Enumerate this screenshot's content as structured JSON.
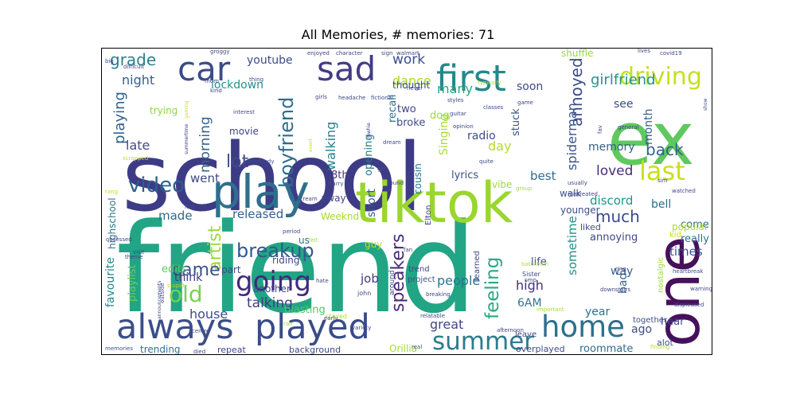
{
  "chart_data": {
    "type": "wordcloud",
    "title": "All Memories, # memories: 71",
    "words": [
      {
        "text": "friend",
        "color": "#21a585"
      },
      {
        "text": "school",
        "color": "#3e3b86"
      },
      {
        "text": "ex",
        "color": "#5fc85e"
      },
      {
        "text": "one",
        "color": "#46105b"
      },
      {
        "text": "tiktok",
        "color": "#9ad62e"
      },
      {
        "text": "play",
        "color": "#2f6f8e"
      },
      {
        "text": "always",
        "color": "#3b4e8a"
      },
      {
        "text": "played",
        "color": "#3a4b89"
      },
      {
        "text": "first",
        "color": "#24888b"
      },
      {
        "text": "car",
        "color": "#3b4b88"
      },
      {
        "text": "sad",
        "color": "#433c84"
      },
      {
        "text": "home",
        "color": "#2e6f8e"
      },
      {
        "text": "driving",
        "color": "#c6e022"
      },
      {
        "text": "summer",
        "color": "#2c7c8e"
      },
      {
        "text": "going",
        "color": "#3f2a7b"
      },
      {
        "text": "last",
        "color": "#c8df1f"
      },
      {
        "text": "old",
        "color": "#79d151"
      },
      {
        "text": "video",
        "color": "#2a5f8d"
      },
      {
        "text": "boyfriend",
        "color": "#2c6d8e"
      },
      {
        "text": "artist",
        "color": "#9fd838"
      },
      {
        "text": "breakup",
        "color": "#2f5a8c"
      },
      {
        "text": "came",
        "color": "#3b528b"
      },
      {
        "text": "feeling",
        "color": "#28a883"
      },
      {
        "text": "speakers",
        "color": "#482a7a"
      },
      {
        "text": "annoyed",
        "color": "#3d4d8a"
      },
      {
        "text": "grade",
        "color": "#2c7f8e"
      },
      {
        "text": "girlfriend",
        "color": "#22938c"
      },
      {
        "text": "lot",
        "color": "#3e4c8a"
      },
      {
        "text": "morning",
        "color": "#37658d"
      },
      {
        "text": "back",
        "color": "#2f638e"
      },
      {
        "text": "playing",
        "color": "#31628c"
      },
      {
        "text": "work",
        "color": "#3b4e8a"
      },
      {
        "text": "night",
        "color": "#355f8d"
      },
      {
        "text": "talking",
        "color": "#403a82"
      },
      {
        "text": "much",
        "color": "#3a4989"
      },
      {
        "text": "spiderman",
        "color": "#3b528b"
      },
      {
        "text": "late",
        "color": "#414a88"
      },
      {
        "text": "loved",
        "color": "#472d7b"
      },
      {
        "text": "walking",
        "color": "#25838e"
      },
      {
        "text": "dance",
        "color": "#a7d834"
      },
      {
        "text": "many",
        "color": "#22a884"
      },
      {
        "text": "youtube",
        "color": "#3b4b8a"
      },
      {
        "text": "lockdown",
        "color": "#21918c"
      },
      {
        "text": "memory",
        "color": "#355f8d"
      },
      {
        "text": "day",
        "color": "#b4dc2b"
      },
      {
        "text": "people",
        "color": "#2a768e"
      },
      {
        "text": "high",
        "color": "#3f2f7c"
      },
      {
        "text": "sometime",
        "color": "#21918c"
      },
      {
        "text": "house",
        "color": "#3d4d8a"
      },
      {
        "text": "great",
        "color": "#414487"
      },
      {
        "text": "job",
        "color": "#433882"
      },
      {
        "text": "released",
        "color": "#355f8d"
      },
      {
        "text": "went",
        "color": "#3f4788"
      },
      {
        "text": "made",
        "color": "#31688e"
      },
      {
        "text": "times",
        "color": "#3b528b"
      },
      {
        "text": "best",
        "color": "#2f6c8e"
      },
      {
        "text": "discord",
        "color": "#21918c"
      },
      {
        "text": "see",
        "color": "#3e4a89"
      },
      {
        "text": "soon",
        "color": "#3f4788"
      },
      {
        "text": "month",
        "color": "#35608d"
      },
      {
        "text": "bell",
        "color": "#2e6e8e"
      },
      {
        "text": "think",
        "color": "#443a83"
      },
      {
        "text": "favourite",
        "color": "#25848e"
      },
      {
        "text": "playlist",
        "color": "#6ccd5a"
      },
      {
        "text": "blasting",
        "color": "#52c569"
      },
      {
        "text": "short",
        "color": "#3a548c"
      },
      {
        "text": "6AM",
        "color": "#2a788e"
      },
      {
        "text": "year",
        "color": "#2d708e"
      },
      {
        "text": "way",
        "color": "#355e8d"
      },
      {
        "text": "bad",
        "color": "#32648e"
      },
      {
        "text": "ago",
        "color": "#3e4c8a"
      },
      {
        "text": "hear",
        "color": "#3f4889"
      },
      {
        "text": "roommate",
        "color": "#2f6c8e"
      },
      {
        "text": "trending",
        "color": "#2c738e"
      },
      {
        "text": "edits",
        "color": "#5ec962"
      },
      {
        "text": "riding",
        "color": "#414487"
      },
      {
        "text": "life",
        "color": "#3b528b"
      },
      {
        "text": "annoying",
        "color": "#3f4889"
      },
      {
        "text": "really",
        "color": "#2e6f8e"
      },
      {
        "text": "come",
        "color": "#2c718e"
      },
      {
        "text": "popular",
        "color": "#addc30"
      },
      {
        "text": "Singing",
        "color": "#a9dc33"
      },
      {
        "text": "radio",
        "color": "#3c4f8a"
      },
      {
        "text": "stuck",
        "color": "#3b528b"
      },
      {
        "text": "broke",
        "color": "#3d4e8a"
      },
      {
        "text": "two",
        "color": "#3f4788"
      },
      {
        "text": "dog",
        "color": "#9bd93c"
      },
      {
        "text": "opening",
        "color": "#2a778e"
      },
      {
        "text": "recall",
        "color": "#2c738e"
      },
      {
        "text": "8th",
        "color": "#463480"
      },
      {
        "text": "highschool",
        "color": "#2b758e"
      },
      {
        "text": "lyrics",
        "color": "#3d4e8a"
      },
      {
        "text": "Weeknd",
        "color": "#a5db36"
      },
      {
        "text": "guy",
        "color": "#c2df23"
      },
      {
        "text": "part",
        "color": "#3f4788"
      },
      {
        "text": "another",
        "color": "#3e4989"
      },
      {
        "text": "us",
        "color": "#2d708e"
      },
      {
        "text": "away",
        "color": "#414487"
      },
      {
        "text": "thought",
        "color": "#3f4889"
      },
      {
        "text": "cousin",
        "color": "#2b758e"
      },
      {
        "text": "vibe",
        "color": "#a0da39"
      },
      {
        "text": "walk",
        "color": "#3b528b"
      },
      {
        "text": "younger",
        "color": "#3d4d8a"
      },
      {
        "text": "liked",
        "color": "#3f4889"
      },
      {
        "text": "nostalgic",
        "color": "#9fda3a"
      },
      {
        "text": "kid",
        "color": "#c9e020"
      },
      {
        "text": "shuffle",
        "color": "#9bd93c"
      },
      {
        "text": "trying",
        "color": "#8bd646"
      },
      {
        "text": "movie",
        "color": "#414487"
      },
      {
        "text": "repeat",
        "color": "#3f4889"
      },
      {
        "text": "background",
        "color": "#3e4a89"
      },
      {
        "text": "Orillia",
        "color": "#a8db34"
      },
      {
        "text": "overplayed",
        "color": "#3f4889"
      },
      {
        "text": "leave",
        "color": "#3f4889"
      },
      {
        "text": "together",
        "color": "#3b528b"
      },
      {
        "text": "trend",
        "color": "#414487"
      },
      {
        "text": "project",
        "color": "#3b528b"
      },
      {
        "text": "learned",
        "color": "#3e4a89"
      },
      {
        "text": "Elton",
        "color": "#414487"
      },
      {
        "text": "around",
        "color": "#3f4788"
      },
      {
        "text": "stayed",
        "color": "#b5de2b"
      },
      {
        "text": "john",
        "color": "#414487"
      },
      {
        "text": "Sister",
        "color": "#3e4a89"
      },
      {
        "text": "bathroom",
        "color": "#b8de29"
      },
      {
        "text": "ring",
        "color": "#414487"
      },
      {
        "text": "alot",
        "color": "#3b528b"
      },
      {
        "text": "warning",
        "color": "#414487"
      },
      {
        "text": "heartbreak",
        "color": "#3e4a89"
      },
      {
        "text": "displeased",
        "color": "#3f4889"
      },
      {
        "text": "finding",
        "color": "#bade28"
      },
      {
        "text": "important",
        "color": "#a5db36"
      },
      {
        "text": "afternoon",
        "color": "#414487"
      },
      {
        "text": "relatable",
        "color": "#3e4a89"
      },
      {
        "text": "real",
        "color": "#3b528b"
      },
      {
        "text": "variety",
        "color": "#414487"
      },
      {
        "text": "early",
        "color": "#3e4a89"
      },
      {
        "text": "died",
        "color": "#414487"
      },
      {
        "text": "memories",
        "color": "#3b528b"
      },
      {
        "text": "centre",
        "color": "#3e4a89"
      },
      {
        "text": "ran",
        "color": "#a5db36"
      },
      {
        "text": "hate",
        "color": "#3f4889"
      },
      {
        "text": "felt",
        "color": "#a8db34"
      },
      {
        "text": "outside",
        "color": "#414487"
      },
      {
        "text": "announcements",
        "color": "#3e4a89"
      },
      {
        "text": "stupid",
        "color": "#b5de2b"
      },
      {
        "text": "theme",
        "color": "#414487"
      },
      {
        "text": "visit",
        "color": "#3f4889"
      },
      {
        "text": "obsessed",
        "color": "#414487"
      },
      {
        "text": "period",
        "color": "#3e4a89"
      },
      {
        "text": "lost",
        "color": "#3b528b"
      },
      {
        "text": "rang",
        "color": "#bade28"
      },
      {
        "text": "scream",
        "color": "#414487"
      },
      {
        "text": "harry",
        "color": "#3f4889"
      },
      {
        "text": "event",
        "color": "#c4e022"
      },
      {
        "text": "found",
        "color": "#414487"
      },
      {
        "text": "got",
        "color": "#3e4a89"
      },
      {
        "text": "dream",
        "color": "#3f4889"
      },
      {
        "text": "mwhie",
        "color": "#414487"
      },
      {
        "text": "somebody",
        "color": "#3e4a89"
      },
      {
        "text": "scrapped",
        "color": "#c4e022"
      },
      {
        "text": "summertime",
        "color": "#414487"
      },
      {
        "text": "interest",
        "color": "#3e4a89"
      },
      {
        "text": "gaming",
        "color": "#c4e022"
      },
      {
        "text": "mom",
        "color": "#3f4889"
      },
      {
        "text": "kind",
        "color": "#414487"
      },
      {
        "text": "thing",
        "color": "#3e4a89"
      },
      {
        "text": "difficult",
        "color": "#3f4889"
      },
      {
        "text": "big",
        "color": "#414487"
      },
      {
        "text": "groggy",
        "color": "#3e4a89"
      },
      {
        "text": "girls",
        "color": "#414487"
      },
      {
        "text": "headache",
        "color": "#3f4889"
      },
      {
        "text": "fictional",
        "color": "#3e4a89"
      },
      {
        "text": "enjoyed",
        "color": "#414487"
      },
      {
        "text": "character",
        "color": "#3f4889"
      },
      {
        "text": "sign",
        "color": "#3e4a89"
      },
      {
        "text": "walmart",
        "color": "#414487"
      },
      {
        "text": "typically",
        "color": "#bade28"
      },
      {
        "text": "never",
        "color": "#3e4a89"
      },
      {
        "text": "styles",
        "color": "#414487"
      },
      {
        "text": "classes",
        "color": "#3f4889"
      },
      {
        "text": "guitar",
        "color": "#3e4a89"
      },
      {
        "text": "game",
        "color": "#414487"
      },
      {
        "text": "opinion",
        "color": "#3f4889"
      },
      {
        "text": "quite",
        "color": "#3e4a89"
      },
      {
        "text": "usually",
        "color": "#414487"
      },
      {
        "text": "mistreated",
        "color": "#3f4889"
      },
      {
        "text": "group",
        "color": "#a5db36"
      },
      {
        "text": "watched",
        "color": "#3e4a89"
      },
      {
        "text": "sim",
        "color": "#414487"
      },
      {
        "text": "general",
        "color": "#3f4889"
      },
      {
        "text": "fav",
        "color": "#3e4a89"
      },
      {
        "text": "lives",
        "color": "#414487"
      },
      {
        "text": "covid19",
        "color": "#3f4889"
      },
      {
        "text": "show",
        "color": "#3e4a89"
      },
      {
        "text": "downstairs",
        "color": "#414487"
      },
      {
        "text": "smp",
        "color": "#3f4889"
      },
      {
        "text": "fan",
        "color": "#3e4a89"
      },
      {
        "text": "breaking",
        "color": "#414487"
      }
    ]
  }
}
